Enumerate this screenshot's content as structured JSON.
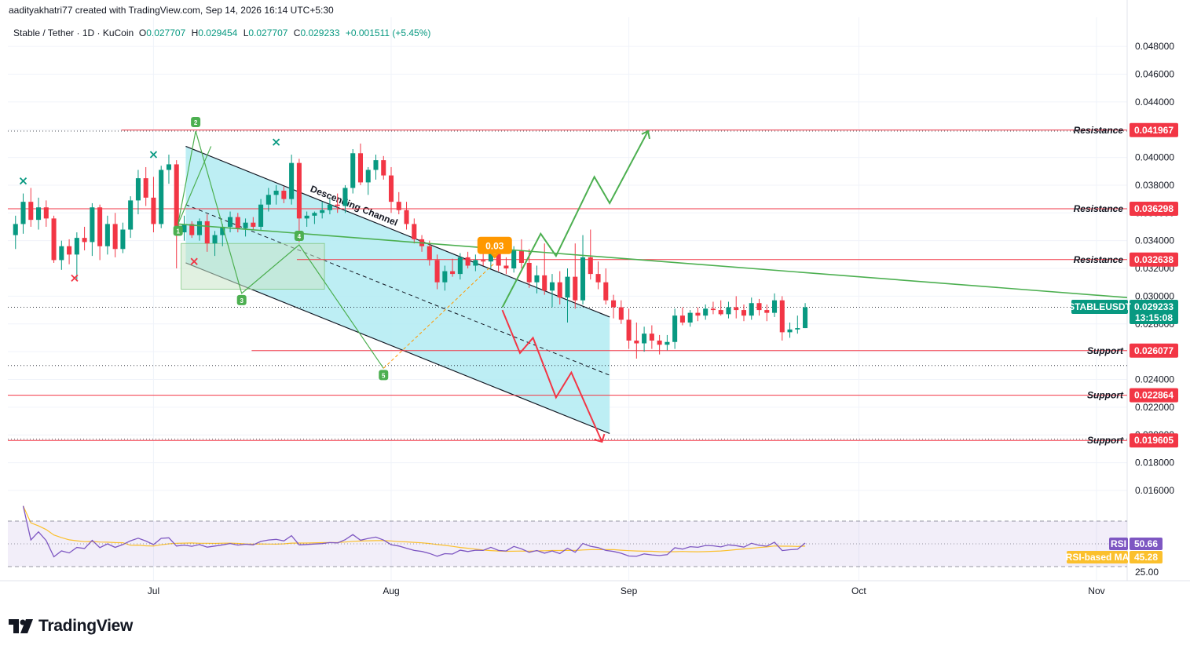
{
  "header": {
    "attribution": "aadityakhatri77 created with TradingView.com, Sep 14, 2026 16:14 UTC+5:30"
  },
  "legend": {
    "symbol": "Stable / Tether · 1D · KuCoin",
    "open_label": "O",
    "open": "0.027707",
    "high_label": "H",
    "high": "0.029454",
    "low_label": "L",
    "low": "0.027707",
    "close_label": "C",
    "close": "0.029233",
    "change": "+0.001511 (+5.45%)"
  },
  "brand": {
    "name": "TradingView"
  },
  "colors": {
    "up": "#089981",
    "down": "#f23645",
    "resistance": "#f23645",
    "channel_fill": "#b2ebf2",
    "pattern_line": "#4caf50",
    "rsi": "#7e57c2",
    "rsi_ma": "#fbc02d",
    "price_tag": "#089981",
    "projection_down": "#f23645",
    "projection_up": "#4caf50",
    "target_label": "#ff9800"
  },
  "chart_data": {
    "type": "candlestick",
    "y_axis": {
      "ylim": [
        0.0143,
        0.0501
      ],
      "ticks": [
        "0.048000",
        "0.046000",
        "0.044000",
        "0.042000",
        "0.040000",
        "0.038000",
        "0.036000",
        "0.034000",
        "0.032000",
        "0.030000",
        "0.028000",
        "0.026000",
        "0.024000",
        "0.022000",
        "0.020000",
        "0.018000",
        "0.016000"
      ]
    },
    "x_axis": {
      "labels": [
        "Jul",
        "Aug",
        "Sep",
        "Oct",
        "Nov"
      ],
      "label_dates": [
        "2026-07-01",
        "2026-08-01",
        "2026-09-01",
        "2026-10-01",
        "2026-11-01"
      ],
      "xlim": [
        "2026-06-12",
        "2026-11-05"
      ]
    },
    "ohlc_start_date": "2026-06-13",
    "ohlc": [
      [
        0.0344,
        0.0358,
        0.0334,
        0.0352
      ],
      [
        0.0352,
        0.0374,
        0.0345,
        0.0368
      ],
      [
        0.0368,
        0.0378,
        0.035,
        0.0355
      ],
      [
        0.0355,
        0.0371,
        0.0348,
        0.0364
      ],
      [
        0.0364,
        0.0369,
        0.035,
        0.0356
      ],
      [
        0.0356,
        0.0358,
        0.0324,
        0.0326
      ],
      [
        0.0326,
        0.034,
        0.0319,
        0.0336
      ],
      [
        0.0336,
        0.0341,
        0.0323,
        0.033
      ],
      [
        0.033,
        0.0346,
        0.0312,
        0.0342
      ],
      [
        0.0342,
        0.035,
        0.0333,
        0.0339
      ],
      [
        0.0339,
        0.0367,
        0.0329,
        0.0364
      ],
      [
        0.0364,
        0.0366,
        0.0326,
        0.0336
      ],
      [
        0.0336,
        0.0358,
        0.033,
        0.0352
      ],
      [
        0.0352,
        0.036,
        0.0328,
        0.0334
      ],
      [
        0.0334,
        0.0353,
        0.0331,
        0.0348
      ],
      [
        0.0348,
        0.0372,
        0.0342,
        0.0369
      ],
      [
        0.0369,
        0.0391,
        0.0359,
        0.0385
      ],
      [
        0.0385,
        0.0393,
        0.0365,
        0.0371
      ],
      [
        0.0371,
        0.0386,
        0.0346,
        0.0352
      ],
      [
        0.0352,
        0.0394,
        0.0349,
        0.0391
      ],
      [
        0.0391,
        0.0402,
        0.0381,
        0.0395
      ],
      [
        0.0395,
        0.0398,
        0.032,
        0.0346
      ],
      [
        0.0346,
        0.0358,
        0.034,
        0.0352
      ],
      [
        0.0352,
        0.0354,
        0.0342,
        0.0344
      ],
      [
        0.0344,
        0.0356,
        0.034,
        0.0354
      ],
      [
        0.0354,
        0.0359,
        0.0332,
        0.0338
      ],
      [
        0.0338,
        0.0347,
        0.0329,
        0.0344
      ],
      [
        0.0344,
        0.0352,
        0.0336,
        0.035
      ],
      [
        0.035,
        0.0361,
        0.0346,
        0.0357
      ],
      [
        0.0357,
        0.036,
        0.0346,
        0.0349
      ],
      [
        0.0349,
        0.0356,
        0.0343,
        0.0353
      ],
      [
        0.0353,
        0.0357,
        0.0348,
        0.035
      ],
      [
        0.035,
        0.037,
        0.0347,
        0.0366
      ],
      [
        0.0366,
        0.0378,
        0.0361,
        0.0373
      ],
      [
        0.0373,
        0.038,
        0.0366,
        0.0376
      ],
      [
        0.0376,
        0.0379,
        0.0367,
        0.037
      ],
      [
        0.037,
        0.0402,
        0.0366,
        0.0396
      ],
      [
        0.0396,
        0.0399,
        0.0339,
        0.0356
      ],
      [
        0.0356,
        0.0361,
        0.035,
        0.0358
      ],
      [
        0.0358,
        0.0361,
        0.0352,
        0.036
      ],
      [
        0.036,
        0.0368,
        0.0356,
        0.0362
      ],
      [
        0.0362,
        0.037,
        0.0359,
        0.0366
      ],
      [
        0.0366,
        0.0374,
        0.036,
        0.0365
      ],
      [
        0.0365,
        0.038,
        0.036,
        0.0378
      ],
      [
        0.0378,
        0.0406,
        0.0374,
        0.0403
      ],
      [
        0.0403,
        0.041,
        0.038,
        0.0382
      ],
      [
        0.0382,
        0.0393,
        0.0373,
        0.0391
      ],
      [
        0.0391,
        0.0402,
        0.0384,
        0.0398
      ],
      [
        0.0398,
        0.0401,
        0.0384,
        0.0387
      ],
      [
        0.0387,
        0.0393,
        0.036,
        0.0368
      ],
      [
        0.0368,
        0.0375,
        0.0359,
        0.0362
      ],
      [
        0.0362,
        0.0368,
        0.0348,
        0.0352
      ],
      [
        0.0352,
        0.0356,
        0.0338,
        0.0341
      ],
      [
        0.0341,
        0.0344,
        0.0332,
        0.0336
      ],
      [
        0.0336,
        0.034,
        0.0322,
        0.0326
      ],
      [
        0.0326,
        0.033,
        0.0305,
        0.031
      ],
      [
        0.031,
        0.0322,
        0.0304,
        0.0318
      ],
      [
        0.0318,
        0.0327,
        0.0314,
        0.0316
      ],
      [
        0.0316,
        0.0331,
        0.0312,
        0.0328
      ],
      [
        0.0328,
        0.0332,
        0.032,
        0.0322
      ],
      [
        0.0322,
        0.033,
        0.0318,
        0.0326
      ],
      [
        0.0326,
        0.0333,
        0.0322,
        0.0325
      ],
      [
        0.0325,
        0.0338,
        0.032,
        0.0334
      ],
      [
        0.0334,
        0.0339,
        0.0318,
        0.0322
      ],
      [
        0.0322,
        0.0328,
        0.0316,
        0.032
      ],
      [
        0.032,
        0.0336,
        0.0317,
        0.0333
      ],
      [
        0.0333,
        0.0341,
        0.032,
        0.0324
      ],
      [
        0.0324,
        0.0334,
        0.0306,
        0.031
      ],
      [
        0.031,
        0.0322,
        0.0302,
        0.0315
      ],
      [
        0.0315,
        0.0338,
        0.0301,
        0.0304
      ],
      [
        0.0304,
        0.0316,
        0.0292,
        0.031
      ],
      [
        0.031,
        0.0318,
        0.0294,
        0.0299
      ],
      [
        0.0299,
        0.032,
        0.0281,
        0.0314
      ],
      [
        0.0314,
        0.0338,
        0.0291,
        0.0297
      ],
      [
        0.0297,
        0.0344,
        0.0294,
        0.0328
      ],
      [
        0.0328,
        0.0348,
        0.0312,
        0.0316
      ],
      [
        0.0316,
        0.0325,
        0.0305,
        0.031
      ],
      [
        0.031,
        0.032,
        0.0294,
        0.0297
      ],
      [
        0.0297,
        0.0301,
        0.0284,
        0.0292
      ],
      [
        0.0292,
        0.0297,
        0.028,
        0.0283
      ],
      [
        0.0283,
        0.0291,
        0.0262,
        0.0268
      ],
      [
        0.0268,
        0.0281,
        0.0255,
        0.0266
      ],
      [
        0.0266,
        0.0278,
        0.026,
        0.0273
      ],
      [
        0.0273,
        0.0279,
        0.0262,
        0.0268
      ],
      [
        0.0268,
        0.0272,
        0.0258,
        0.0265
      ],
      [
        0.0265,
        0.0272,
        0.0261,
        0.0267
      ],
      [
        0.0267,
        0.0291,
        0.0262,
        0.0286
      ],
      [
        0.0286,
        0.0292,
        0.0279,
        0.0281
      ],
      [
        0.0281,
        0.029,
        0.0278,
        0.0288
      ],
      [
        0.0288,
        0.0292,
        0.0282,
        0.0286
      ],
      [
        0.0286,
        0.0294,
        0.0283,
        0.0291
      ],
      [
        0.0291,
        0.0296,
        0.0287,
        0.029
      ],
      [
        0.029,
        0.0297,
        0.0286,
        0.0287
      ],
      [
        0.0287,
        0.0296,
        0.0284,
        0.0292
      ],
      [
        0.0292,
        0.03,
        0.0284,
        0.029
      ],
      [
        0.029,
        0.0294,
        0.0282,
        0.0286
      ],
      [
        0.0286,
        0.0299,
        0.0283,
        0.0295
      ],
      [
        0.0295,
        0.0298,
        0.0286,
        0.029
      ],
      [
        0.029,
        0.0294,
        0.0282,
        0.0288
      ],
      [
        0.0288,
        0.0302,
        0.0285,
        0.0297
      ],
      [
        0.0297,
        0.03,
        0.0268,
        0.0274
      ],
      [
        0.0274,
        0.0281,
        0.027,
        0.0276
      ],
      [
        0.0276,
        0.0286,
        0.0273,
        0.0277
      ],
      [
        0.0277,
        0.0295,
        0.0277,
        0.0292
      ]
    ],
    "levels": [
      {
        "label": "Resistance",
        "value": "0.041967"
      },
      {
        "label": "Resistance",
        "value": "0.036298"
      },
      {
        "label": "Resistance",
        "value": "0.032638"
      },
      {
        "label": "Support",
        "value": "0.026077"
      },
      {
        "label": "Support",
        "value": "0.022864"
      },
      {
        "label": "Support",
        "value": "0.019605"
      }
    ],
    "current_price": {
      "symbol": "STABLEUSDT",
      "value": "0.029233",
      "countdown": "13:15:08"
    },
    "channel_label": "Descending Channel",
    "target_label": "0.03",
    "wave_points": [
      "1",
      "2",
      "3",
      "4",
      "5"
    ],
    "rsi": {
      "label": "RSI",
      "value": "50.66",
      "ma_label": "RSI-based MA",
      "ma_value": "45.28",
      "axis_tick": "25.00",
      "ylim": [
        20,
        80
      ],
      "bands": [
        70,
        50,
        30
      ]
    }
  }
}
